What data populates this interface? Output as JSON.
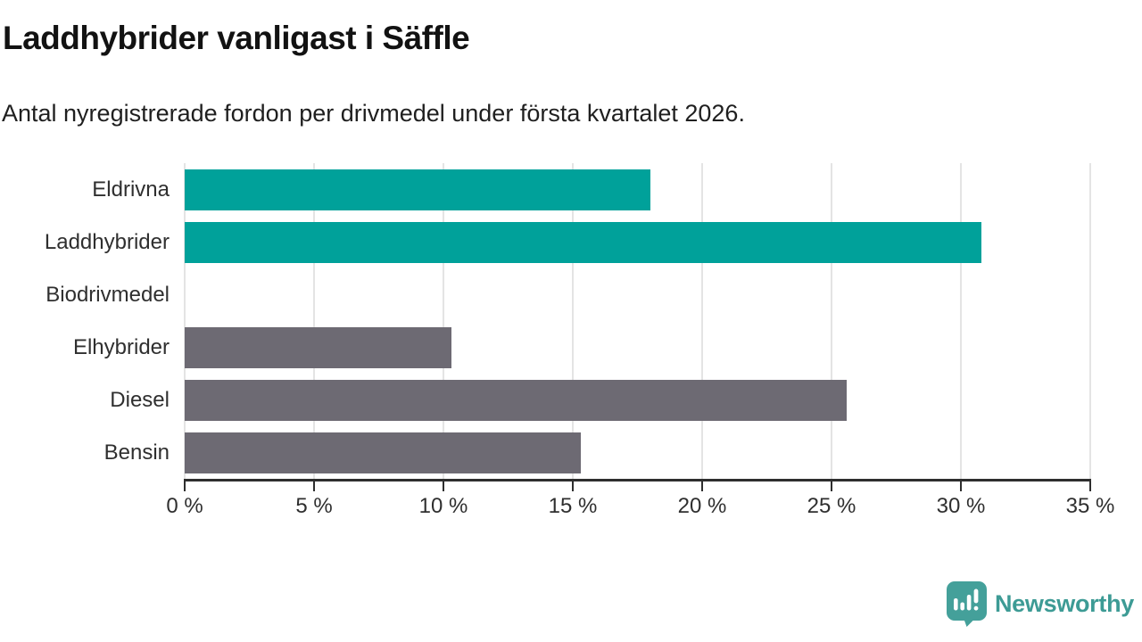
{
  "header": {
    "title": "Laddhybrider vanligast i Säffle",
    "subtitle": "Antal nyregistrerade fordon per drivmedel under första kvartalet 2026."
  },
  "chart_data": {
    "type": "bar",
    "orientation": "horizontal",
    "title": "Laddhybrider vanligast i Säffle",
    "subtitle": "Antal nyregistrerade fordon per drivmedel under första kvartalet 2026.",
    "categories": [
      "Eldrivna",
      "Laddhybrider",
      "Biodrivmedel",
      "Elhybrider",
      "Diesel",
      "Bensin"
    ],
    "values": [
      18.0,
      30.8,
      0,
      10.3,
      25.6,
      15.3
    ],
    "unit": "%",
    "xlim": [
      0,
      35
    ],
    "xticks": [
      0,
      5,
      10,
      15,
      20,
      25,
      30,
      35
    ],
    "xtick_labels": [
      "0 %",
      "5 %",
      "10 %",
      "15 %",
      "20 %",
      "25 %",
      "30 %",
      "35 %"
    ],
    "bar_colors": [
      "#00a19a",
      "#00a19a",
      "#6d6a73",
      "#6d6a73",
      "#6d6a73",
      "#6d6a73"
    ],
    "grid": "vertical",
    "legend": "none",
    "colors": {
      "electric_teal": "#00a19a",
      "fossil_gray": "#6d6a73",
      "gridline": "#e4e4e4",
      "axis": "#2e2e2e"
    }
  },
  "footer": {
    "brand": "Newsworthy",
    "brand_color": "#3d9b95",
    "logo_icon": "bar-chart-speech-bubble-icon",
    "logo_color": "#44a09a"
  }
}
